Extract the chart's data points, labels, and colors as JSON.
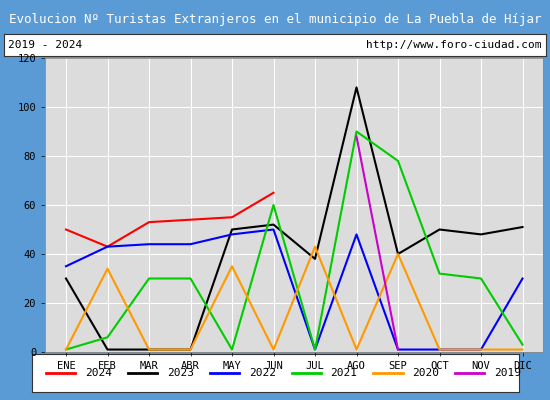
{
  "title": "Evolucion Nº Turistas Extranjeros en el municipio de La Puebla de Híjar",
  "subtitle_left": "2019 - 2024",
  "subtitle_right": "http://www.foro-ciudad.com",
  "months": [
    "ENE",
    "FEB",
    "MAR",
    "ABR",
    "MAY",
    "JUN",
    "JUL",
    "AGO",
    "SEP",
    "OCT",
    "NOV",
    "DIC"
  ],
  "ylim": [
    0,
    120
  ],
  "yticks": [
    0,
    20,
    40,
    60,
    80,
    100,
    120
  ],
  "series": {
    "2024": {
      "color": "#ff0000",
      "data": [
        50,
        43,
        53,
        54,
        55,
        65,
        null,
        null,
        null,
        null,
        null,
        null
      ]
    },
    "2023": {
      "color": "#000000",
      "data": [
        30,
        1,
        1,
        1,
        50,
        52,
        38,
        108,
        40,
        50,
        48,
        51
      ]
    },
    "2022": {
      "color": "#0000ff",
      "data": [
        35,
        43,
        44,
        44,
        48,
        50,
        1,
        48,
        1,
        1,
        1,
        30
      ]
    },
    "2021": {
      "color": "#00cc00",
      "data": [
        1,
        6,
        30,
        30,
        1,
        60,
        1,
        90,
        78,
        32,
        30,
        3
      ]
    },
    "2020": {
      "color": "#ff9900",
      "data": [
        1,
        34,
        1,
        1,
        35,
        1,
        43,
        1,
        40,
        1,
        1,
        1
      ]
    },
    "2019": {
      "color": "#cc00cc",
      "data": [
        null,
        null,
        null,
        null,
        null,
        null,
        null,
        88,
        1,
        null,
        null,
        null
      ]
    }
  },
  "legend_order": [
    "2024",
    "2023",
    "2022",
    "2021",
    "2020",
    "2019"
  ],
  "title_bg": "#5b9bd5",
  "title_color": "#ffffff",
  "plot_bg": "#dcdcdc",
  "grid_color": "#ffffff",
  "border_color": "#5b9bd5",
  "fig_width": 5.5,
  "fig_height": 4.0,
  "dpi": 100
}
